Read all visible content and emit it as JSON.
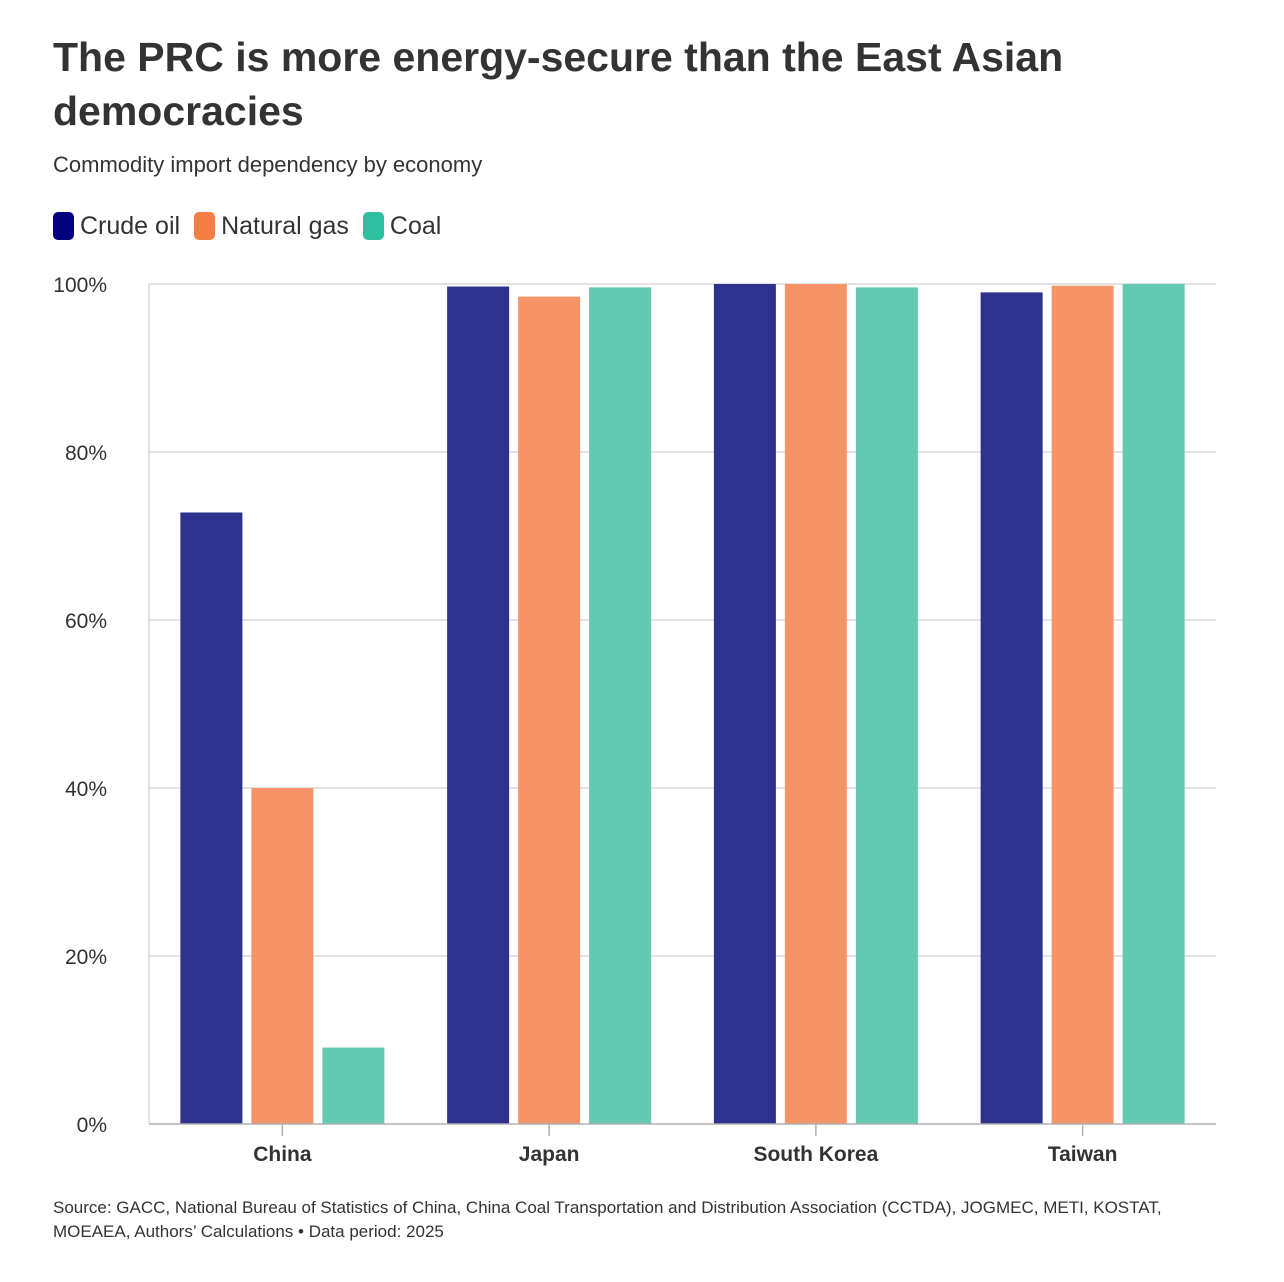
{
  "title": "The PRC is more energy-secure than the East Asian democracies",
  "subtitle": "Commodity import dependency by economy",
  "source": "Source: GACC, National Bureau of Statistics of China, China Coal Transportation and Distribution Association (CCTDA), JOGMEC, METI, KOSTAT, MOEAEA, Authors’ Calculations • Data period: 2025",
  "colors": {
    "legend": [
      "#000080",
      "#f47e43",
      "#2dbf9f"
    ],
    "bars": [
      "#2e318e",
      "#f69467",
      "#63c9b3"
    ],
    "grid": "#d9d9d9",
    "axis": "#b0b0b0",
    "text": "#333333"
  },
  "chart_data": {
    "type": "bar",
    "title": "The PRC is more energy-secure than the East Asian democracies",
    "subtitle": "Commodity import dependency by economy",
    "xlabel": "",
    "ylabel": "",
    "ylim": [
      0,
      100
    ],
    "y_ticks": [
      "0%",
      "20%",
      "40%",
      "60%",
      "80%",
      "100%"
    ],
    "y_tick_values": [
      0,
      20,
      40,
      60,
      80,
      100
    ],
    "categories": [
      "China",
      "Japan",
      "South Korea",
      "Taiwan"
    ],
    "series": [
      {
        "name": "Crude oil",
        "values": [
          72.8,
          99.7,
          100,
          99.0
        ]
      },
      {
        "name": "Natural gas",
        "values": [
          40.0,
          98.5,
          100,
          99.8
        ]
      },
      {
        "name": "Coal",
        "values": [
          9.1,
          99.6,
          99.6,
          100
        ]
      }
    ],
    "grid": true,
    "legend": "top-left"
  }
}
